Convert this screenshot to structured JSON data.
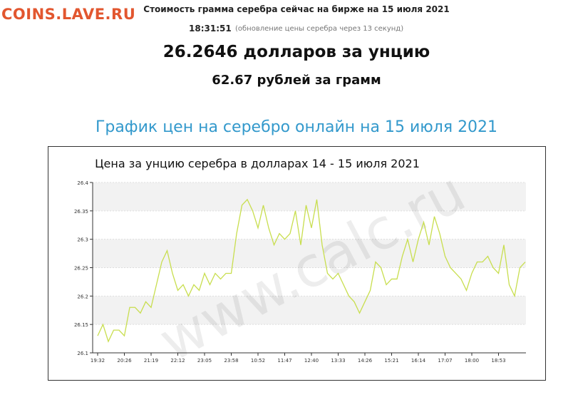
{
  "site_watermark": "COINS.LAVE.RU",
  "header": {
    "title": "Стоимость грамма серебра сейчас на бирже на 15 июля 2021",
    "time": "18:31:51",
    "update_note": "(обновление цены серебра через 13 секунд)",
    "price_usd": "26.2646 долларов за унцию",
    "price_rub": "62.67 рублей за грамм",
    "section_title": "График цен на серебро онлайн на 15 июля 2021"
  },
  "chart_data": {
    "type": "line",
    "title": "Цена за унцию серебра в долларах 14 - 15 июля 2021",
    "watermark": "www.calc.ru",
    "series": [
      {
        "color": "#c8de4e",
        "values": [
          26.13,
          26.15,
          26.12,
          26.14,
          26.14,
          26.13,
          26.18,
          26.18,
          26.17,
          26.19,
          26.18,
          26.22,
          26.26,
          26.28,
          26.24,
          26.21,
          26.22,
          26.2,
          26.22,
          26.21,
          26.24,
          26.22,
          26.24,
          26.23,
          26.24,
          26.24,
          26.31,
          26.36,
          26.37,
          26.35,
          26.32,
          26.36,
          26.32,
          26.29,
          26.31,
          26.3,
          26.31,
          26.35,
          26.29,
          26.36,
          26.32,
          26.37,
          26.29,
          26.24,
          26.23,
          26.24,
          26.22,
          26.2,
          26.19,
          26.17,
          26.19,
          26.21,
          26.26,
          26.25,
          26.22,
          26.23,
          26.23,
          26.27,
          26.3,
          26.26,
          26.3,
          26.33,
          26.29,
          26.34,
          26.31,
          26.27,
          26.25,
          26.24,
          26.23,
          26.21,
          26.24,
          26.26,
          26.26,
          26.27,
          26.25,
          26.24,
          26.29,
          26.22,
          26.2,
          26.25,
          26.26
        ]
      }
    ],
    "xlim": [
      0,
      80
    ],
    "xticks": [
      {
        "value": 0,
        "label": "19:32"
      },
      {
        "value": 5,
        "label": "20:26"
      },
      {
        "value": 10,
        "label": "21:19"
      },
      {
        "value": 15,
        "label": "22:12"
      },
      {
        "value": 20,
        "label": "23:05"
      },
      {
        "value": 25,
        "label": "23:58"
      },
      {
        "value": 30,
        "label": "10:52"
      },
      {
        "value": 35,
        "label": "11:47"
      },
      {
        "value": 40,
        "label": "12:40"
      },
      {
        "value": 45,
        "label": "13:33"
      },
      {
        "value": 50,
        "label": "14:26"
      },
      {
        "value": 55,
        "label": "15:21"
      },
      {
        "value": 60,
        "label": "16:14"
      },
      {
        "value": 65,
        "label": "17:07"
      },
      {
        "value": 70,
        "label": "18:00"
      },
      {
        "value": 75,
        "label": "18:53"
      }
    ],
    "ylim": [
      26.1,
      26.4
    ],
    "yticks": [
      26.1,
      26.15,
      26.2,
      26.25,
      26.3,
      26.35,
      26.4
    ],
    "grid": true
  }
}
